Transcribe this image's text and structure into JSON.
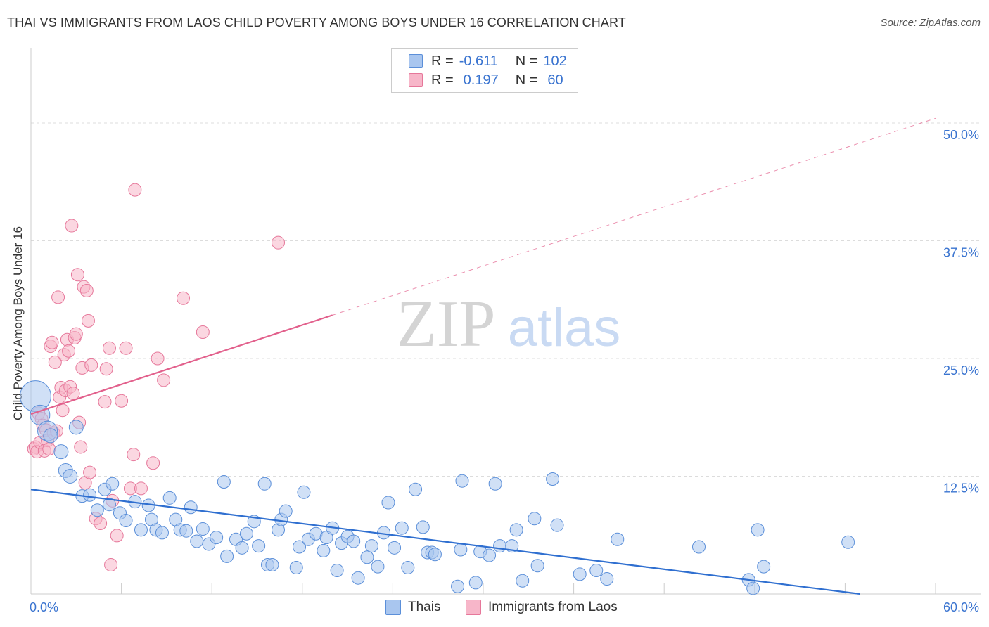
{
  "header": {
    "title": "THAI VS IMMIGRANTS FROM LAOS CHILD POVERTY AMONG BOYS UNDER 16 CORRELATION CHART",
    "source": "Source: ZipAtlas.com"
  },
  "watermark": {
    "zip": "ZIP",
    "atlas": "atlas"
  },
  "legend": {
    "rows": [
      {
        "r_label": "R =",
        "r_value": "-0.611",
        "n_label": "N =",
        "n_value": "102"
      },
      {
        "r_label": "R =",
        "r_value": "0.197",
        "n_label": "N =",
        "n_value": "60"
      }
    ]
  },
  "bottom_legend": {
    "thais": "Thais",
    "laos": "Immigrants from Laos"
  },
  "colors": {
    "thai_fill": "#a9c6ef",
    "thai_stroke": "#5b8fd9",
    "thai_line": "#2f6fd0",
    "laos_fill": "#f7b6c9",
    "laos_stroke": "#e6779a",
    "laos_line": "#e2608c",
    "axis_text": "#3a74d0",
    "grid": "#dcdcdc"
  },
  "chart_data": {
    "type": "scatter",
    "title": "THAI VS IMMIGRANTS FROM LAOS CHILD POVERTY AMONG BOYS UNDER 16 CORRELATION CHART",
    "xlabel": "",
    "ylabel": "Child Poverty Among Boys Under 16",
    "xlim": [
      0,
      60
    ],
    "ylim": [
      0,
      50
    ],
    "x_tick_labels": [
      "0.0%",
      "60.0%"
    ],
    "y_tick_labels": [
      "12.5%",
      "25.0%",
      "37.5%",
      "50.0%"
    ],
    "y_ticks": [
      12.5,
      25.0,
      37.5,
      50.0
    ],
    "grid": true,
    "legend_position": "top-center",
    "series": [
      {
        "name": "Thais",
        "r": -0.611,
        "n": 102,
        "trend": {
          "x0": 0,
          "y0": 11.1,
          "x1": 55,
          "y1": 0
        },
        "points": [
          [
            0.3,
            21,
            22
          ],
          [
            0.6,
            19,
            14
          ],
          [
            1.1,
            17.3,
            14
          ],
          [
            1.3,
            16.8,
            10
          ],
          [
            2.0,
            15.1,
            10
          ],
          [
            2.3,
            13.1,
            10
          ],
          [
            2.6,
            12.5,
            10
          ],
          [
            3.0,
            17.7,
            10
          ],
          [
            3.4,
            10.4,
            9
          ],
          [
            3.9,
            10.5,
            9
          ],
          [
            4.4,
            8.9,
            9
          ],
          [
            4.9,
            11.1,
            9
          ],
          [
            5.2,
            9.5,
            9
          ],
          [
            5.4,
            11.7,
            9
          ],
          [
            5.9,
            8.6,
            9
          ],
          [
            6.3,
            7.8,
            9
          ],
          [
            6.9,
            9.8,
            9
          ],
          [
            7.3,
            6.8,
            9
          ],
          [
            7.8,
            9.4,
            9
          ],
          [
            8.0,
            7.9,
            9
          ],
          [
            8.3,
            6.8,
            9
          ],
          [
            8.7,
            6.5,
            9
          ],
          [
            9.2,
            10.2,
            9
          ],
          [
            9.6,
            7.9,
            9
          ],
          [
            9.9,
            6.8,
            9
          ],
          [
            10.3,
            6.7,
            9
          ],
          [
            10.6,
            9.2,
            9
          ],
          [
            11.0,
            5.6,
            9
          ],
          [
            11.4,
            6.9,
            9
          ],
          [
            11.8,
            5.3,
            9
          ],
          [
            12.3,
            6.0,
            9
          ],
          [
            12.8,
            11.9,
            9
          ],
          [
            13.0,
            4.0,
            9
          ],
          [
            13.6,
            5.8,
            9
          ],
          [
            14.0,
            4.9,
            9
          ],
          [
            14.3,
            6.4,
            9
          ],
          [
            14.8,
            7.7,
            9
          ],
          [
            15.1,
            5.1,
            9
          ],
          [
            15.5,
            11.7,
            9
          ],
          [
            15.7,
            3.1,
            9
          ],
          [
            16.0,
            3.1,
            9
          ],
          [
            16.4,
            6.8,
            9
          ],
          [
            16.6,
            7.9,
            9
          ],
          [
            16.9,
            8.8,
            9
          ],
          [
            17.6,
            2.8,
            9
          ],
          [
            17.8,
            5.0,
            9
          ],
          [
            18.1,
            10.8,
            9
          ],
          [
            18.4,
            5.8,
            9
          ],
          [
            18.9,
            6.4,
            9
          ],
          [
            19.4,
            4.6,
            9
          ],
          [
            19.6,
            6.0,
            9
          ],
          [
            20.0,
            7.0,
            9
          ],
          [
            20.3,
            2.5,
            9
          ],
          [
            20.6,
            5.4,
            9
          ],
          [
            21.0,
            6.1,
            9
          ],
          [
            21.4,
            5.6,
            9
          ],
          [
            21.7,
            1.7,
            9
          ],
          [
            22.3,
            3.9,
            9
          ],
          [
            22.6,
            5.1,
            9
          ],
          [
            23.0,
            2.9,
            9
          ],
          [
            23.4,
            6.5,
            9
          ],
          [
            23.7,
            9.7,
            9
          ],
          [
            24.1,
            4.9,
            9
          ],
          [
            24.6,
            7.0,
            9
          ],
          [
            25.0,
            2.8,
            9
          ],
          [
            25.5,
            11.1,
            9
          ],
          [
            26.0,
            7.1,
            9
          ],
          [
            26.3,
            4.4,
            9
          ],
          [
            26.6,
            4.4,
            9
          ],
          [
            26.8,
            4.2,
            9
          ],
          [
            28.3,
            0.8,
            9
          ],
          [
            28.5,
            4.7,
            9
          ],
          [
            28.6,
            12.0,
            9
          ],
          [
            29.5,
            1.2,
            9
          ],
          [
            29.8,
            4.5,
            9
          ],
          [
            30.4,
            4.1,
            9
          ],
          [
            30.8,
            11.7,
            9
          ],
          [
            31.1,
            5.1,
            9
          ],
          [
            31.9,
            5.1,
            9
          ],
          [
            32.2,
            6.8,
            9
          ],
          [
            32.6,
            1.4,
            9
          ],
          [
            33.4,
            8.0,
            9
          ],
          [
            33.6,
            3.0,
            9
          ],
          [
            34.6,
            12.2,
            9
          ],
          [
            34.9,
            7.3,
            9
          ],
          [
            36.4,
            2.1,
            9
          ],
          [
            37.5,
            2.5,
            9
          ],
          [
            38.2,
            1.6,
            9
          ],
          [
            38.9,
            5.8,
            9
          ],
          [
            44.3,
            5.0,
            9
          ],
          [
            47.6,
            1.5,
            9
          ],
          [
            47.9,
            0.6,
            9
          ],
          [
            48.2,
            6.8,
            9
          ],
          [
            48.6,
            2.9,
            9
          ],
          [
            54.2,
            5.5,
            9
          ]
        ]
      },
      {
        "name": "Immigrants from Laos",
        "r": 0.197,
        "n": 60,
        "trend": {
          "x0": 0,
          "y0": 19.1,
          "x1": 20,
          "y1": 29.6,
          "dash_x1": 60,
          "dash_y1": 50.5
        },
        "points": [
          [
            0.2,
            15.4,
            9
          ],
          [
            0.3,
            15.6,
            9
          ],
          [
            0.4,
            15.1,
            9
          ],
          [
            0.5,
            19.2,
            9
          ],
          [
            0.6,
            16.1,
            9
          ],
          [
            0.7,
            18.6,
            9
          ],
          [
            0.8,
            17.9,
            9
          ],
          [
            0.9,
            15.2,
            9
          ],
          [
            1.0,
            17.4,
            9
          ],
          [
            1.1,
            16.3,
            9
          ],
          [
            1.2,
            15.4,
            9
          ],
          [
            1.3,
            26.3,
            9
          ],
          [
            1.4,
            26.7,
            9
          ],
          [
            1.5,
            17.1,
            9
          ],
          [
            1.6,
            24.6,
            9
          ],
          [
            1.7,
            17.3,
            9
          ],
          [
            1.8,
            31.5,
            9
          ],
          [
            1.9,
            20.9,
            9
          ],
          [
            2.0,
            21.9,
            9
          ],
          [
            2.1,
            19.5,
            9
          ],
          [
            2.2,
            25.4,
            9
          ],
          [
            2.3,
            21.6,
            9
          ],
          [
            2.4,
            27.0,
            9
          ],
          [
            2.5,
            25.8,
            9
          ],
          [
            2.6,
            22.0,
            9
          ],
          [
            2.7,
            39.1,
            9
          ],
          [
            2.8,
            21.3,
            9
          ],
          [
            2.9,
            27.2,
            9
          ],
          [
            3.0,
            27.6,
            9
          ],
          [
            3.1,
            33.9,
            9
          ],
          [
            3.2,
            18.2,
            9
          ],
          [
            3.3,
            15.6,
            9
          ],
          [
            3.4,
            24.0,
            9
          ],
          [
            3.5,
            32.6,
            9
          ],
          [
            3.6,
            11.8,
            9
          ],
          [
            3.7,
            32.2,
            9
          ],
          [
            3.8,
            29.0,
            9
          ],
          [
            3.9,
            12.9,
            9
          ],
          [
            4.0,
            24.3,
            9
          ],
          [
            4.3,
            8.0,
            9
          ],
          [
            4.6,
            7.5,
            9
          ],
          [
            4.9,
            20.4,
            9
          ],
          [
            5.0,
            23.9,
            9
          ],
          [
            5.2,
            26.1,
            9
          ],
          [
            5.3,
            3.1,
            9
          ],
          [
            5.4,
            9.9,
            9
          ],
          [
            5.7,
            6.2,
            9
          ],
          [
            6.0,
            20.5,
            9
          ],
          [
            6.3,
            26.1,
            9
          ],
          [
            6.6,
            11.2,
            9
          ],
          [
            6.8,
            14.8,
            9
          ],
          [
            6.9,
            42.9,
            9
          ],
          [
            7.3,
            11.2,
            9
          ],
          [
            8.1,
            13.9,
            9
          ],
          [
            8.4,
            25.0,
            9
          ],
          [
            8.8,
            22.7,
            9
          ],
          [
            10.1,
            31.4,
            9
          ],
          [
            11.4,
            27.8,
            9
          ],
          [
            16.4,
            37.3,
            9
          ]
        ]
      }
    ]
  }
}
